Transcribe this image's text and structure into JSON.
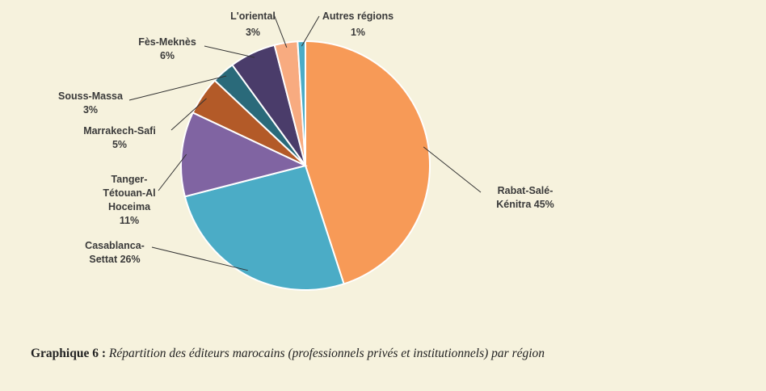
{
  "chart_data": {
    "type": "pie",
    "slices": [
      {
        "label_lines": [
          "Rabat-Salé-",
          "Kénitra 45%"
        ],
        "value": 45,
        "color": "#f79a57"
      },
      {
        "label_lines": [
          "Casablanca-",
          "Settat 26%"
        ],
        "value": 26,
        "color": "#4bacc6"
      },
      {
        "label_lines": [
          "Tanger-",
          "Tétouan-Al",
          "Hoceima",
          "11%"
        ],
        "value": 11,
        "color": "#8064a2"
      },
      {
        "label_lines": [
          "Marrakech-Safi",
          "5%"
        ],
        "value": 5,
        "color": "#b35a28"
      },
      {
        "label_lines": [
          "Souss-Massa",
          "3%"
        ],
        "value": 3,
        "color": "#2a6a7a"
      },
      {
        "label_lines": [
          "Fès-Meknès",
          "6%"
        ],
        "value": 6,
        "color": "#4a3c6a"
      },
      {
        "label_lines": [
          "L'oriental",
          "3%"
        ],
        "value": 3,
        "color": "#f8ab80"
      },
      {
        "label_lines": [
          "Autres régions",
          "1%"
        ],
        "value": 1,
        "color": "#4bacc6"
      }
    ]
  },
  "caption": {
    "prefix": "Graphique 6 : ",
    "text": "Répartition des éditeurs marocains (professionnels privés et institutionnels) par région"
  }
}
